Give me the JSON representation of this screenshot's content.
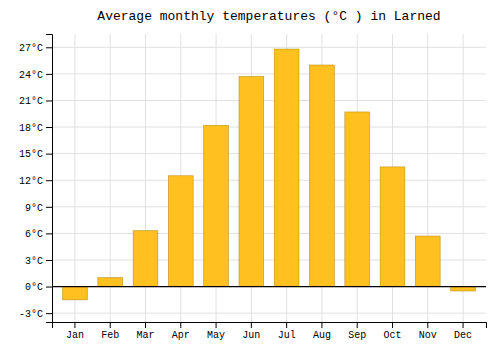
{
  "chart_data": {
    "type": "bar",
    "title": "Average monthly temperatures (°C ) in Larned",
    "categories": [
      "Jan",
      "Feb",
      "Mar",
      "Apr",
      "May",
      "Jun",
      "Jul",
      "Aug",
      "Sep",
      "Oct",
      "Nov",
      "Dec"
    ],
    "values": [
      -1.5,
      1.0,
      6.3,
      12.5,
      18.2,
      23.7,
      26.8,
      25.0,
      19.7,
      13.5,
      5.7,
      -0.5
    ],
    "color": "#FFC020",
    "ylim": [
      -4,
      28.5
    ],
    "yticks": [
      {
        "value": -3,
        "label": "-3°C"
      },
      {
        "value": 0,
        "label": "0°C"
      },
      {
        "value": 3,
        "label": "3°C"
      },
      {
        "value": 6,
        "label": "6°C"
      },
      {
        "value": 9,
        "label": "9°C"
      },
      {
        "value": 12,
        "label": "12°C"
      },
      {
        "value": 15,
        "label": "15°C"
      },
      {
        "value": 18,
        "label": "18°C"
      },
      {
        "value": 21,
        "label": "21°C"
      },
      {
        "value": 24,
        "label": "24°C"
      },
      {
        "value": 27,
        "label": "27°C"
      }
    ],
    "grid": true
  }
}
